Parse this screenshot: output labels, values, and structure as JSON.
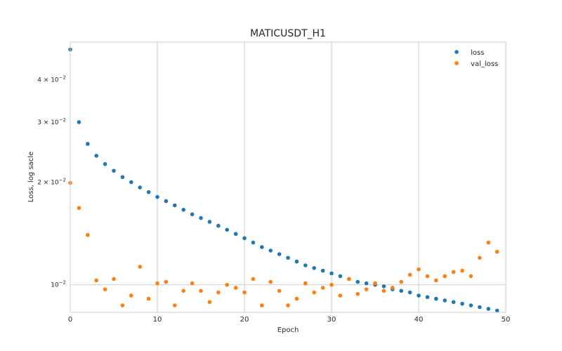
{
  "chart_data": {
    "type": "scatter",
    "title": "MATICUSDT_H1",
    "xlabel": "Epoch",
    "ylabel": "Loss, log sacle",
    "xlim": [
      0,
      50
    ],
    "ylim": [
      0.0083,
      0.0515
    ],
    "yscale": "log",
    "grid": "x-only",
    "legend_position": "top-right",
    "x_ticks": [
      0,
      10,
      20,
      30,
      40,
      50
    ],
    "x_tick_labels": [
      "0",
      "10",
      "20",
      "30",
      "40",
      "50"
    ],
    "y_ticks": [
      {
        "value": 0.01,
        "label": "10⁻²",
        "mant": "",
        "base": "10",
        "exp": "−2"
      },
      {
        "value": 0.02,
        "label": "2 × 10⁻²",
        "mant": "2 × ",
        "base": "10",
        "exp": "−2"
      },
      {
        "value": 0.03,
        "label": "3 × 10⁻²",
        "mant": "3 × ",
        "base": "10",
        "exp": "−2"
      },
      {
        "value": 0.04,
        "label": "4 × 10⁻²",
        "mant": "4 × ",
        "base": "10",
        "exp": "−2"
      }
    ],
    "series": [
      {
        "name": "loss",
        "color": "#1f77b4",
        "x": [
          0,
          1,
          2,
          3,
          4,
          5,
          6,
          7,
          8,
          9,
          10,
          11,
          12,
          13,
          14,
          15,
          16,
          17,
          18,
          19,
          20,
          21,
          22,
          23,
          24,
          25,
          26,
          27,
          28,
          29,
          30,
          31,
          32,
          33,
          34,
          35,
          36,
          37,
          38,
          39,
          40,
          41,
          42,
          43,
          44,
          45,
          46,
          47,
          48,
          49
        ],
        "y": [
          0.049,
          0.03,
          0.0259,
          0.0239,
          0.0226,
          0.0216,
          0.0207,
          0.02,
          0.0193,
          0.0187,
          0.0181,
          0.0176,
          0.0171,
          0.0166,
          0.0161,
          0.0157,
          0.0153,
          0.0149,
          0.0145,
          0.0141,
          0.0137,
          0.0133,
          0.0129,
          0.0126,
          0.0123,
          0.012,
          0.0117,
          0.0114,
          0.0112,
          0.011,
          0.0108,
          0.0106,
          0.0104,
          0.0102,
          0.0101,
          0.01,
          0.0099,
          0.0097,
          0.0096,
          0.0095,
          0.0093,
          0.0092,
          0.0091,
          0.009,
          0.0089,
          0.0088,
          0.0087,
          0.0086,
          0.0085,
          0.0084
        ]
      },
      {
        "name": "val_loss",
        "color": "#ff7f0e",
        "x": [
          0,
          1,
          2,
          3,
          4,
          5,
          6,
          7,
          8,
          9,
          10,
          11,
          12,
          13,
          14,
          15,
          16,
          17,
          18,
          19,
          20,
          21,
          22,
          23,
          24,
          25,
          26,
          27,
          28,
          29,
          30,
          31,
          32,
          33,
          34,
          35,
          36,
          37,
          38,
          39,
          40,
          41,
          42,
          43,
          44,
          45,
          46,
          47,
          48,
          49
        ],
        "y": [
          0.0199,
          0.0168,
          0.014,
          0.0103,
          0.0097,
          0.0104,
          0.0087,
          0.0093,
          0.0113,
          0.0091,
          0.0101,
          0.0102,
          0.0087,
          0.0096,
          0.0101,
          0.0096,
          0.0089,
          0.0095,
          0.01,
          0.0098,
          0.0095,
          0.0104,
          0.0087,
          0.0102,
          0.0096,
          0.0087,
          0.0091,
          0.0101,
          0.0095,
          0.0098,
          0.01,
          0.0093,
          0.0104,
          0.0094,
          0.0097,
          0.0101,
          0.0096,
          0.0098,
          0.0102,
          0.0107,
          0.0111,
          0.0106,
          0.0103,
          0.0106,
          0.0109,
          0.011,
          0.0106,
          0.012,
          0.0133,
          0.0125
        ]
      }
    ]
  }
}
